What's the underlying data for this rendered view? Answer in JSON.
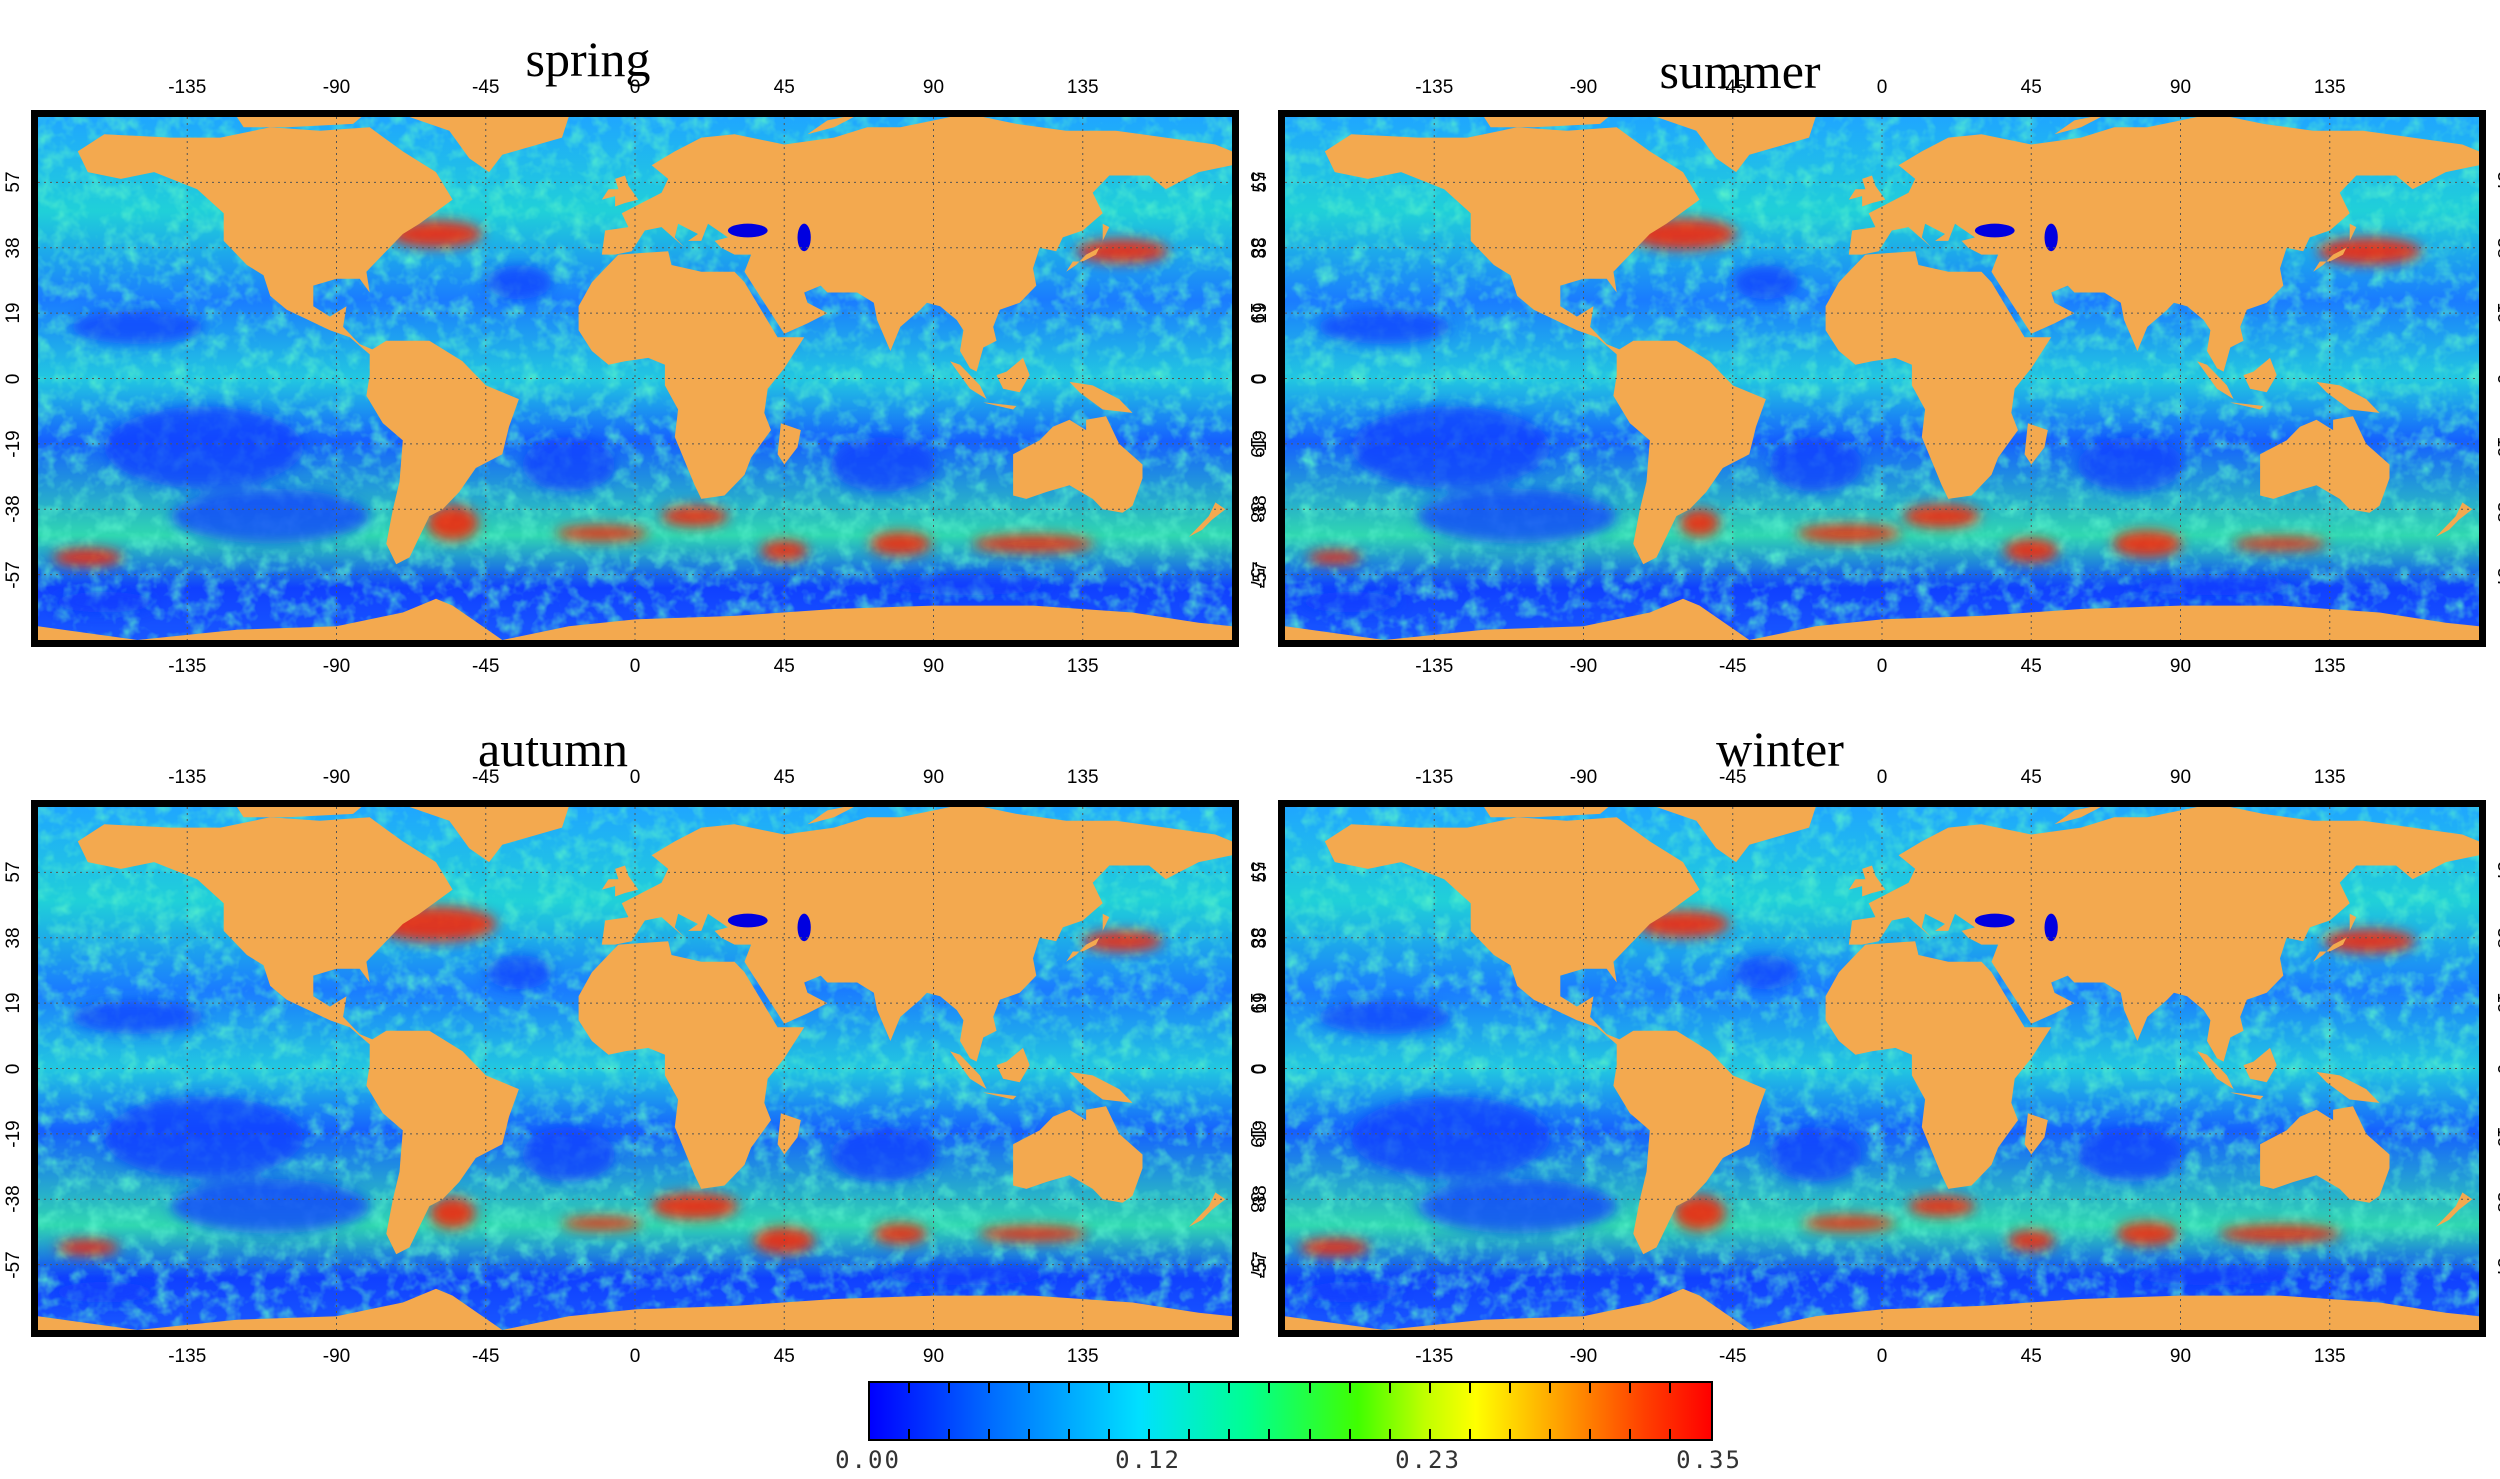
{
  "panels": [
    {
      "title": "spring",
      "key": "spring"
    },
    {
      "title": "summer",
      "key": "summer"
    },
    {
      "title": "autumn",
      "key": "autumn"
    },
    {
      "title": "winter",
      "key": "winter"
    }
  ],
  "lon_ticks": [
    "-135",
    "-90",
    "-45",
    "0",
    "45",
    "90",
    "135"
  ],
  "lon_values": [
    -135,
    -90,
    -45,
    0,
    45,
    90,
    135
  ],
  "lat_ticks": [
    "57",
    "38",
    "19",
    "0",
    "-19",
    "-38",
    "-57"
  ],
  "lat_values": [
    57,
    38,
    19,
    0,
    -19,
    -38,
    -57
  ],
  "colorbar": {
    "labels": [
      "0.00",
      "0.12",
      "0.23",
      "0.35"
    ],
    "min": 0.0,
    "max": 0.35,
    "colormap": "jet"
  },
  "colors": {
    "land": "#f3a94f",
    "ocean_low": "#0a3cff",
    "ocean_mid": "#1fc8e0",
    "ocean_high": "#ff2000",
    "frame": "#000000"
  },
  "map_extent": {
    "lon": [
      -180,
      180
    ],
    "lat": [
      -76,
      76
    ]
  }
}
